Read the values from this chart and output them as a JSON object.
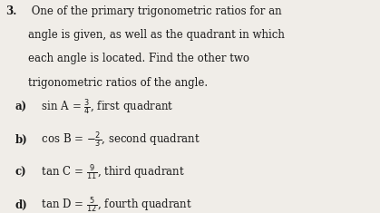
{
  "background_color": "#f0ede8",
  "text_color": "#1a1a1a",
  "title_line1": "3. One of the primary trigonometric ratios for an",
  "title_line2": "    angle is given, as well as the quadrant in which",
  "title_line3": "    each angle is located. Find the other two",
  "title_line4": "    trigonometric ratios of the angle.",
  "items": [
    {
      "label_bold": "a)",
      "prefix": " sin A = ",
      "fraction": "\\frac{3}{4}",
      "suffix": ", first quadrant"
    },
    {
      "label_bold": "b)",
      "prefix": " cos B = ",
      "fraction": "-\\frac{2}{3}",
      "suffix": ", second quadrant"
    },
    {
      "label_bold": "c)",
      "prefix": " tan C = ",
      "fraction": "\\frac{9}{11}",
      "suffix": ", third quadrant"
    },
    {
      "label_bold": "d)",
      "prefix": " tan D = ",
      "fraction": "\\frac{5}{12}",
      "suffix": ", fourth quadrant"
    }
  ],
  "font_size": 8.5,
  "title_font_size": 8.5,
  "math_font_size": 10
}
